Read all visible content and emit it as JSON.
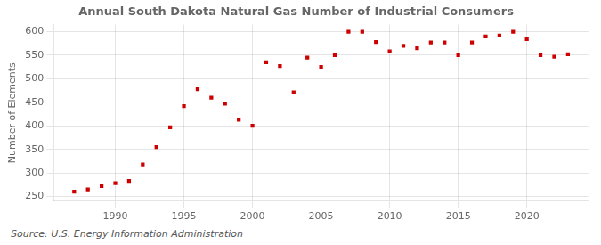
{
  "chart_data": {
    "type": "scatter",
    "title": "Annual South Dakota Natural Gas Number of Industrial Consumers",
    "ylabel": "Number of Elements",
    "annotation": "Source: U.S. Energy Information Administration",
    "x": [
      1987,
      1988,
      1989,
      1990,
      1991,
      1992,
      1993,
      1994,
      1995,
      1996,
      1997,
      1998,
      1999,
      2000,
      2001,
      2002,
      2003,
      2004,
      2005,
      2006,
      2007,
      2008,
      2009,
      2010,
      2011,
      2012,
      2013,
      2014,
      2015,
      2016,
      2017,
      2018,
      2019,
      2020,
      2021,
      2022,
      2023
    ],
    "values": [
      260,
      265,
      272,
      278,
      283,
      318,
      355,
      397,
      442,
      478,
      460,
      447,
      413,
      400,
      535,
      527,
      471,
      545,
      525,
      550,
      600,
      600,
      578,
      558,
      570,
      565,
      577,
      577,
      550,
      577,
      590,
      592,
      600,
      584,
      550,
      547,
      552
    ],
    "color": "#cc0000",
    "marker": "square",
    "xlim": [
      1985.5,
      2024.5
    ],
    "ylim": [
      240,
      615
    ],
    "xticks": [
      1990,
      1995,
      2000,
      2005,
      2010,
      2015,
      2020
    ],
    "yticks": [
      250,
      300,
      350,
      400,
      450,
      500,
      550,
      600
    ],
    "grid": true
  }
}
